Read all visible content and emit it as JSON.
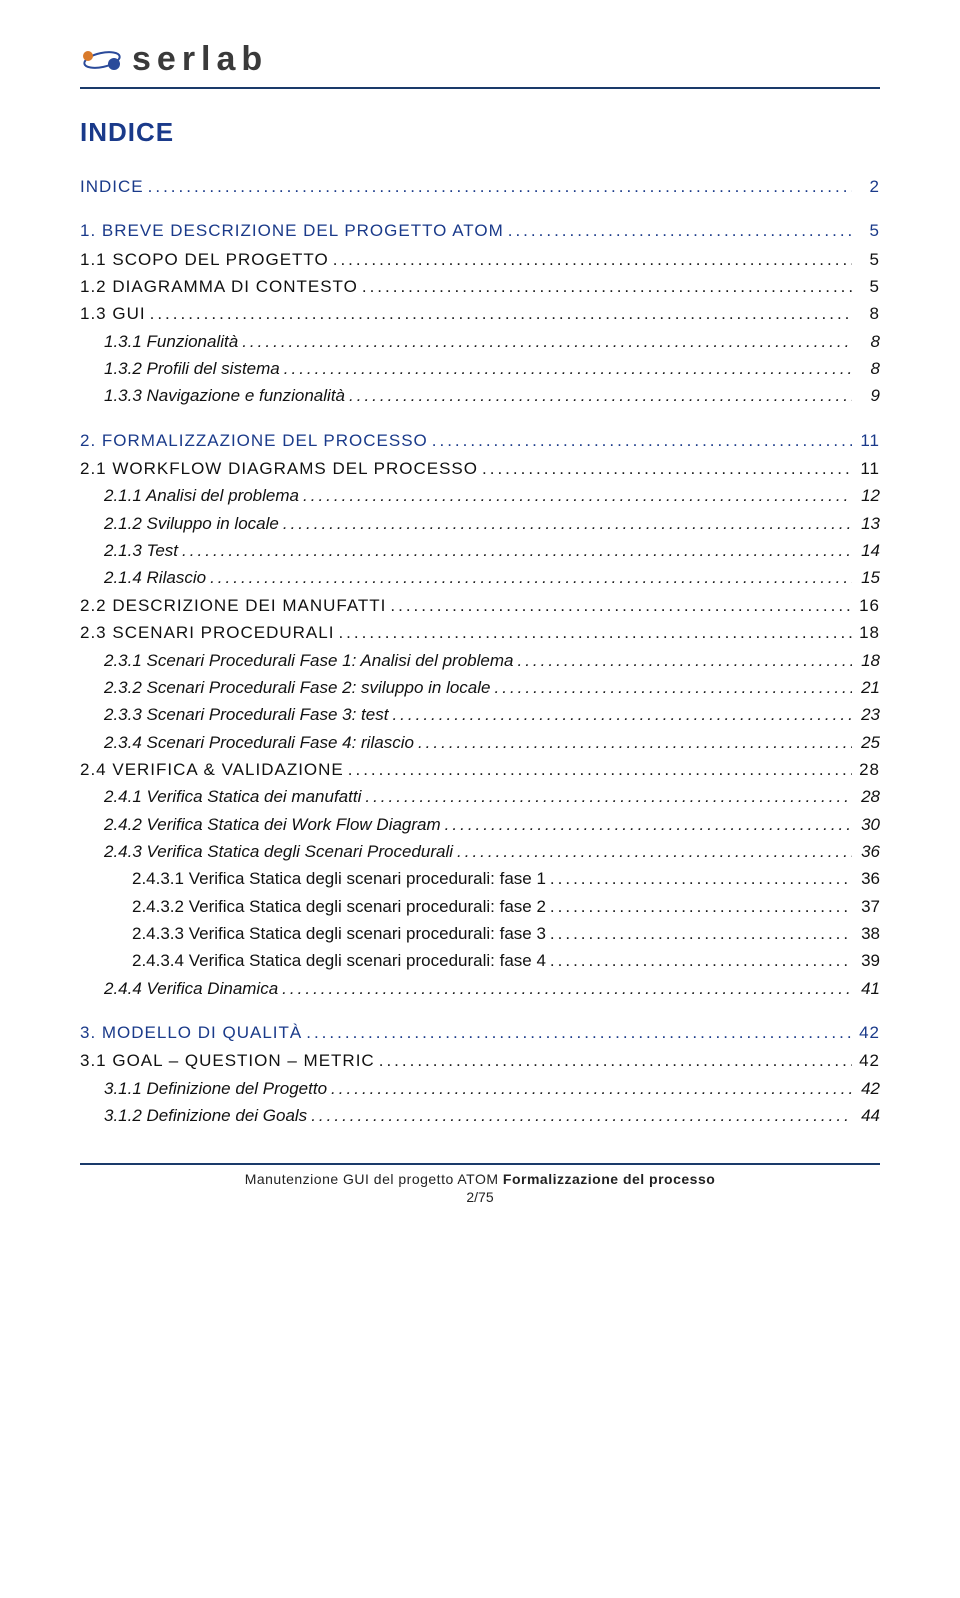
{
  "brand": {
    "name": "serlab"
  },
  "title": "INDICE",
  "colors": {
    "heading_blue": "#1a3a8a",
    "rule_blue": "#1a3a6a",
    "text": "#111111",
    "logo_orange": "#d97a2b",
    "logo_blue": "#2a4a9a"
  },
  "toc": [
    {
      "level": 0,
      "blue": true,
      "label": "INDICE",
      "page": "2"
    },
    {
      "level": 0,
      "blue": true,
      "label": "1.  BREVE DESCRIZIONE DEL PROGETTO ATOM",
      "page": "5"
    },
    {
      "level": 1,
      "blue": false,
      "label": "1.1  SCOPO DEL PROGETTO",
      "page": "5"
    },
    {
      "level": 1,
      "blue": false,
      "label": "1.2  DIAGRAMMA DI CONTESTO",
      "page": "5"
    },
    {
      "level": 1,
      "blue": false,
      "label": "1.3  GUI",
      "page": "8"
    },
    {
      "level": 2,
      "blue": false,
      "label": "1.3.1  Funzionalità",
      "page": "8"
    },
    {
      "level": 2,
      "blue": false,
      "label": "1.3.2  Profili del sistema",
      "page": "8"
    },
    {
      "level": 2,
      "blue": false,
      "label": "1.3.3  Navigazione e funzionalità",
      "page": "9"
    },
    {
      "level": 0,
      "blue": true,
      "label": "2.  FORMALIZZAZIONE DEL PROCESSO",
      "page": "11"
    },
    {
      "level": 1,
      "blue": false,
      "label": "2.1  WORKFLOW DIAGRAMS DEL PROCESSO",
      "page": "11"
    },
    {
      "level": 2,
      "blue": false,
      "label": "2.1.1  Analisi del problema",
      "page": "12"
    },
    {
      "level": 2,
      "blue": false,
      "label": "2.1.2  Sviluppo in locale",
      "page": "13"
    },
    {
      "level": 2,
      "blue": false,
      "label": "2.1.3  Test",
      "page": "14"
    },
    {
      "level": 2,
      "blue": false,
      "label": "2.1.4  Rilascio",
      "page": "15"
    },
    {
      "level": 1,
      "blue": false,
      "label": "2.2  DESCRIZIONE DEI MANUFATTI",
      "page": "16"
    },
    {
      "level": 1,
      "blue": false,
      "label": "2.3  SCENARI PROCEDURALI",
      "page": "18"
    },
    {
      "level": 2,
      "blue": false,
      "label": "2.3.1  Scenari Procedurali  Fase 1: Analisi del problema",
      "page": "18"
    },
    {
      "level": 2,
      "blue": false,
      "label": "2.3.2  Scenari Procedurali  Fase 2: sviluppo in locale",
      "page": "21"
    },
    {
      "level": 2,
      "blue": false,
      "label": "2.3.3  Scenari Procedurali  Fase 3:  test",
      "page": "23"
    },
    {
      "level": 2,
      "blue": false,
      "label": "2.3.4  Scenari Procedurali  Fase 4:  rilascio",
      "page": "25"
    },
    {
      "level": 1,
      "blue": false,
      "label": "2.4  VERIFICA  &  VALIDAZIONE",
      "page": "28"
    },
    {
      "level": 2,
      "blue": false,
      "label": "2.4.1  Verifica Statica dei manufatti",
      "page": "28"
    },
    {
      "level": 2,
      "blue": false,
      "label": "2.4.2  Verifica Statica dei Work Flow Diagram",
      "page": "30"
    },
    {
      "level": 2,
      "blue": false,
      "label": "2.4.3  Verifica Statica degli Scenari Procedurali",
      "page": "36"
    },
    {
      "level": 3,
      "blue": false,
      "label": "2.4.3.1  Verifica Statica degli scenari procedurali: fase 1",
      "page": "36"
    },
    {
      "level": 3,
      "blue": false,
      "label": "2.4.3.2  Verifica Statica degli scenari procedurali: fase 2",
      "page": "37"
    },
    {
      "level": 3,
      "blue": false,
      "label": "2.4.3.3  Verifica Statica degli scenari procedurali: fase 3",
      "page": "38"
    },
    {
      "level": 3,
      "blue": false,
      "label": "2.4.3.4  Verifica Statica degli scenari procedurali: fase 4",
      "page": "39"
    },
    {
      "level": 2,
      "blue": false,
      "label": "2.4.4  Verifica Dinamica",
      "page": "41"
    },
    {
      "level": 0,
      "blue": true,
      "label": "3.  MODELLO DI QUALITÀ",
      "page": "42"
    },
    {
      "level": 1,
      "blue": false,
      "label": "3.1  GOAL – QUESTION – METRIC",
      "page": "42"
    },
    {
      "level": 2,
      "blue": false,
      "label": "3.1.1  Definizione del Progetto",
      "page": "42"
    },
    {
      "level": 2,
      "blue": false,
      "label": "3.1.2  Definizione dei Goals",
      "page": "44"
    }
  ],
  "footer": {
    "line1_plain": "Manutenzione GUI del progetto ATOM ",
    "line1_bold": "Formalizzazione del processo",
    "line2": "2/75"
  }
}
